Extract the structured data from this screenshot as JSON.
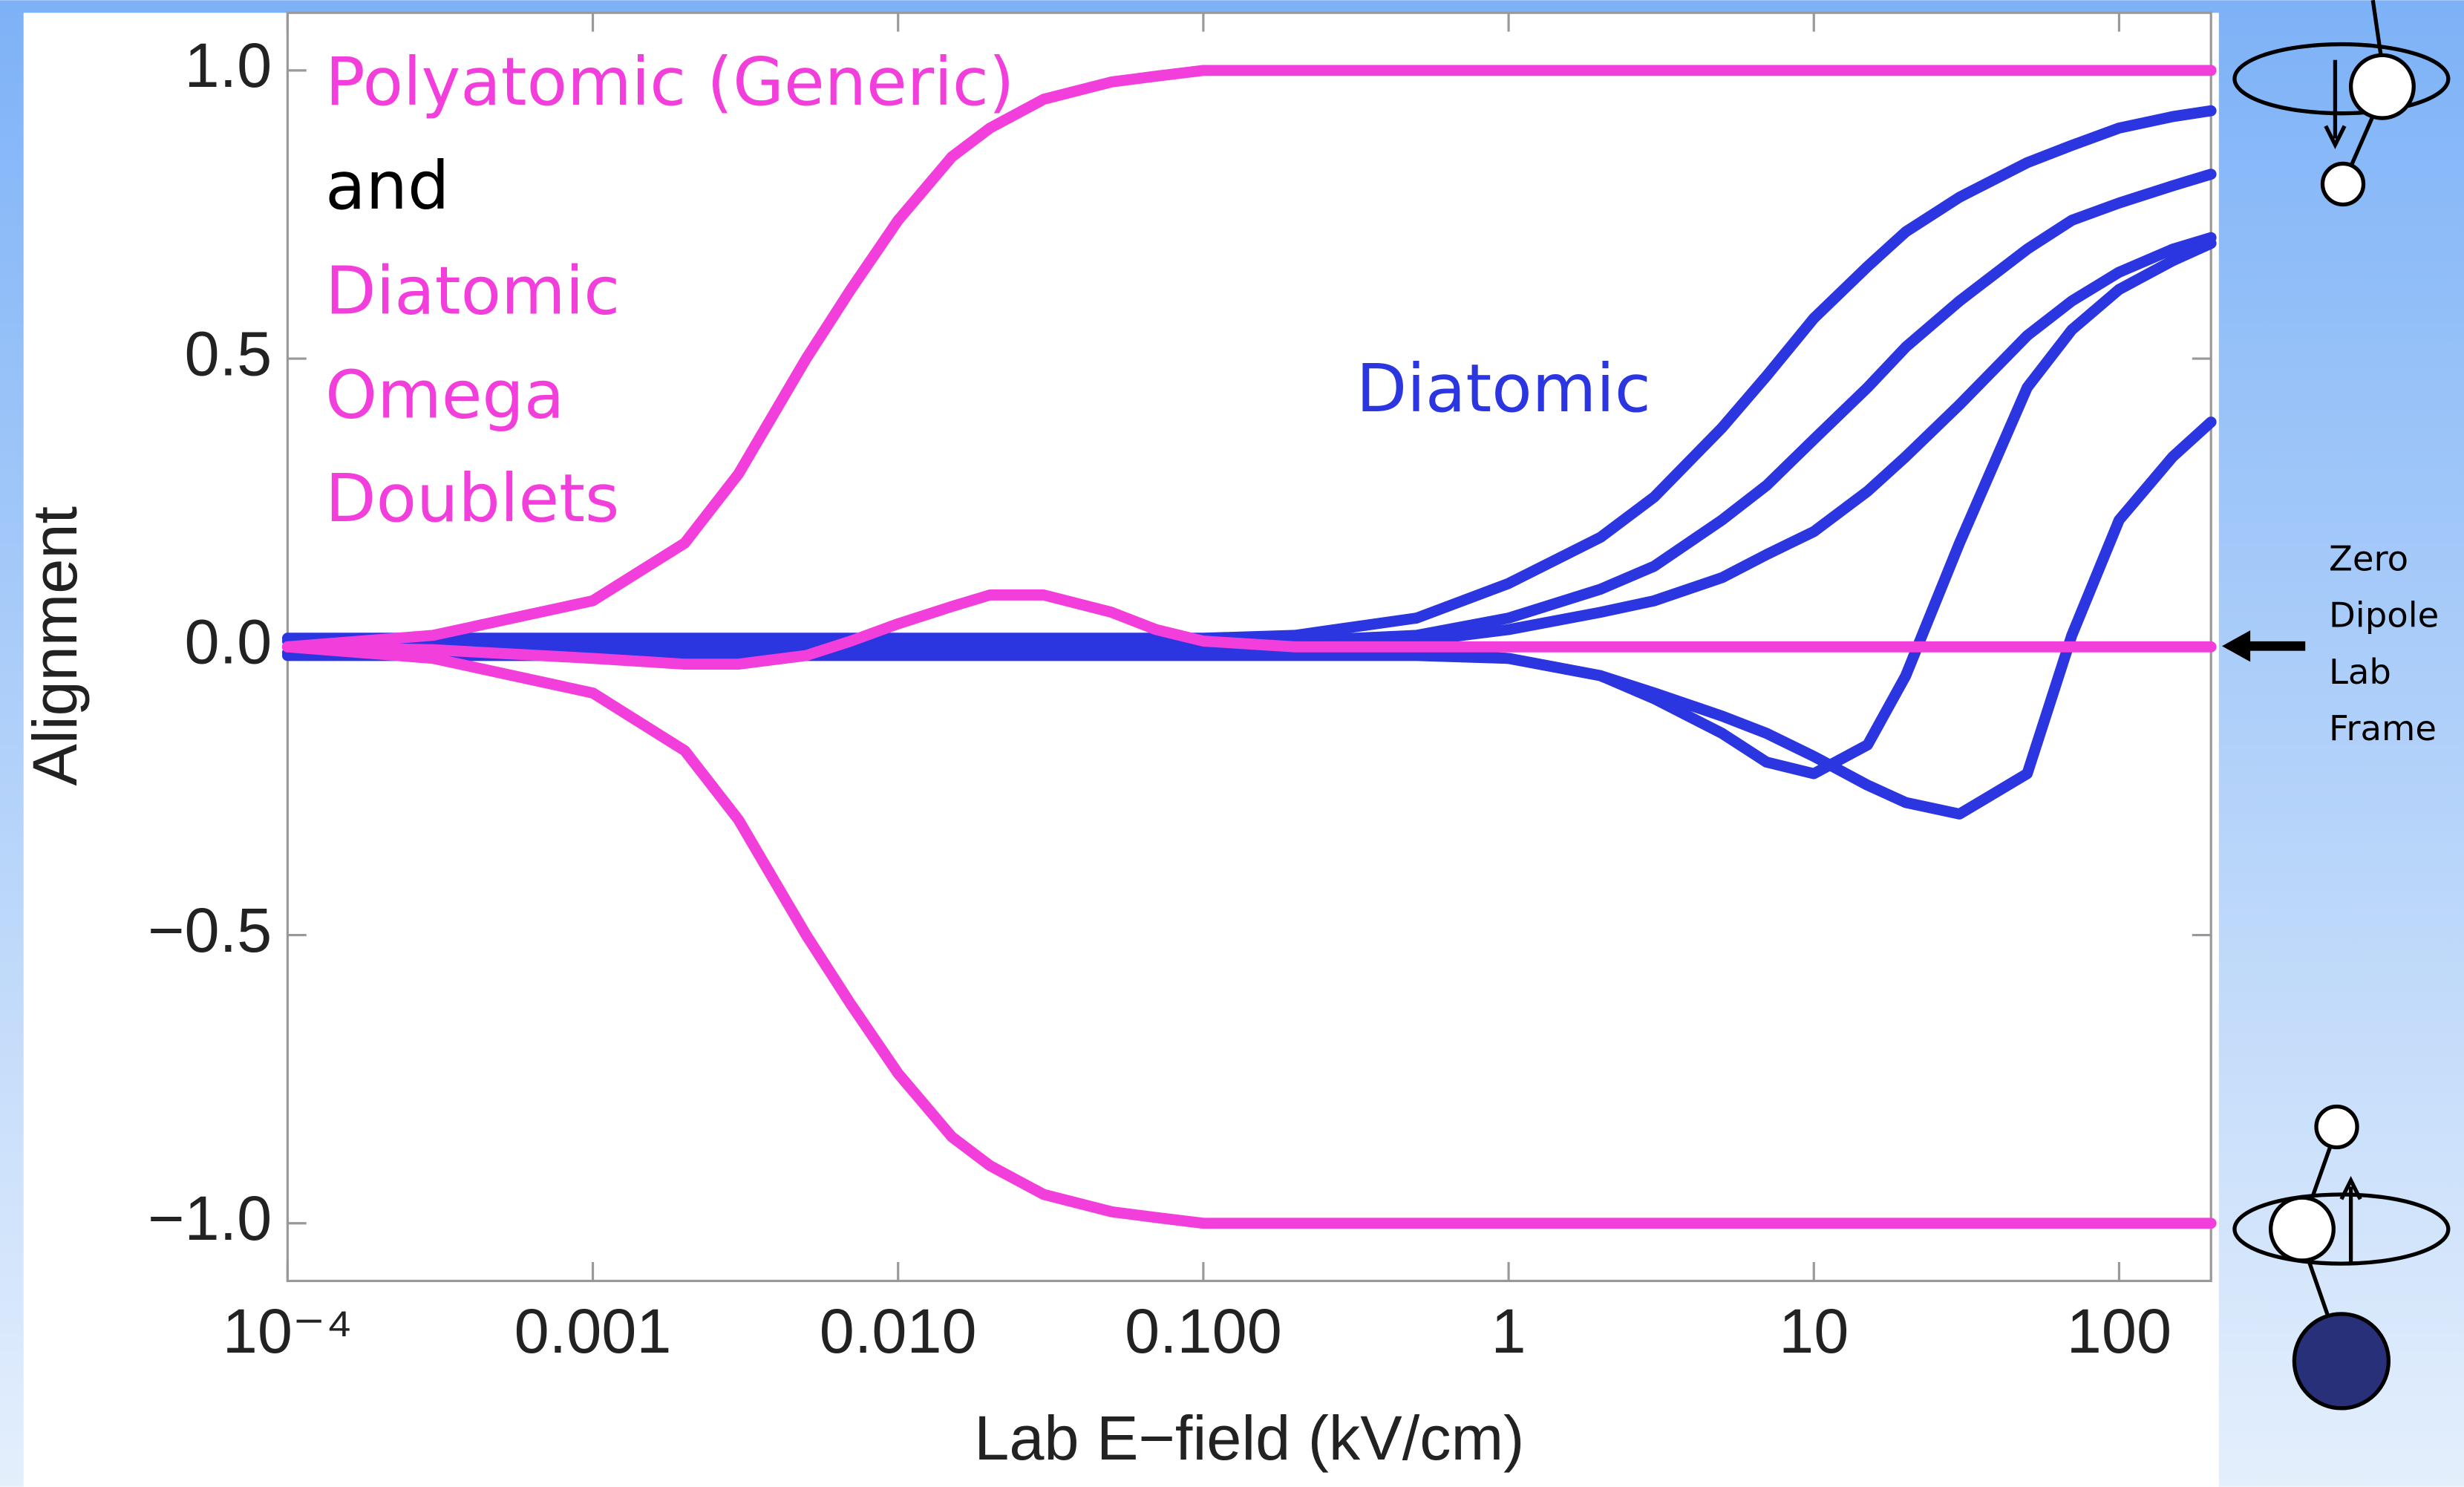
{
  "chart_data": {
    "type": "line",
    "x_label": "Lab E−field (kV/cm)",
    "y_label": "Alignment",
    "x_scale": "log",
    "xlim": [
      0.0001,
      200
    ],
    "ylim": [
      -1.1,
      1.1
    ],
    "xticks": [
      {
        "value": 0.0001,
        "label": "10⁻⁴"
      },
      {
        "value": 0.001,
        "label": "0.001"
      },
      {
        "value": 0.01,
        "label": "0.010"
      },
      {
        "value": 0.1,
        "label": "0.100"
      },
      1,
      10,
      100
    ],
    "yticks": [
      {
        "value": 1,
        "label": "1.0"
      },
      0.5,
      {
        "value": 0,
        "label": "0.0"
      },
      {
        "value": -0.5,
        "label": "−0.5"
      },
      {
        "value": -1,
        "label": "−1.0"
      }
    ],
    "x": [
      0.0001,
      0.0003,
      0.001,
      0.002,
      0.003,
      0.005,
      0.007,
      0.01,
      0.015,
      0.02,
      0.03,
      0.05,
      0.07,
      0.1,
      0.2,
      0.5,
      1,
      2,
      3,
      5,
      7,
      10,
      15,
      20,
      30,
      50,
      70,
      100,
      150,
      200
    ],
    "series": [
      {
        "color": "#2b35e0",
        "values": [
          0.015,
          0.015,
          0.015,
          0.015,
          0.015,
          0.015,
          0.015,
          0.015,
          0.015,
          0.015,
          0.015,
          0.015,
          0.015,
          0.015,
          0.02,
          0.05,
          0.11,
          0.19,
          0.26,
          0.38,
          0.47,
          0.57,
          0.66,
          0.72,
          0.78,
          0.84,
          0.87,
          0.9,
          0.92,
          0.93
        ]
      },
      {
        "color": "#2b35e0",
        "values": [
          0.01,
          0.01,
          0.01,
          0.01,
          0.01,
          0.01,
          0.01,
          0.01,
          0.01,
          0.01,
          0.01,
          0.01,
          0.01,
          0.01,
          0.01,
          0.02,
          0.05,
          0.1,
          0.14,
          0.22,
          0.28,
          0.36,
          0.45,
          0.52,
          0.6,
          0.69,
          0.74,
          0.77,
          0.8,
          0.82
        ]
      },
      {
        "color": "#2b35e0",
        "values": [
          0,
          0,
          0,
          0,
          0,
          0,
          0,
          0,
          0,
          0,
          0,
          0,
          0,
          0,
          0,
          0.01,
          0.03,
          0.06,
          0.08,
          0.12,
          0.16,
          0.2,
          0.27,
          0.33,
          0.42,
          0.54,
          0.6,
          0.65,
          0.69,
          0.71
        ]
      },
      {
        "color": "#2b35e0",
        "values": [
          -0.01,
          -0.01,
          -0.01,
          -0.01,
          -0.01,
          -0.01,
          -0.01,
          -0.01,
          -0.01,
          -0.01,
          -0.01,
          -0.01,
          -0.01,
          -0.01,
          -0.01,
          -0.01,
          -0.02,
          -0.05,
          -0.09,
          -0.15,
          -0.2,
          -0.22,
          -0.17,
          -0.05,
          0.18,
          0.45,
          0.55,
          0.62,
          0.67,
          0.7
        ]
      },
      {
        "color": "#2b35e0",
        "values": [
          -0.015,
          -0.015,
          -0.015,
          -0.015,
          -0.015,
          -0.015,
          -0.015,
          -0.015,
          -0.015,
          -0.015,
          -0.015,
          -0.015,
          -0.015,
          -0.015,
          -0.015,
          -0.015,
          -0.02,
          -0.05,
          -0.08,
          -0.12,
          -0.15,
          -0.19,
          -0.24,
          -0.27,
          -0.29,
          -0.22,
          0.02,
          0.22,
          0.33,
          0.39
        ]
      },
      {
        "color": "#f23fdc",
        "values": [
          0,
          0.02,
          0.08,
          0.18,
          0.3,
          0.5,
          0.62,
          0.74,
          0.85,
          0.9,
          0.95,
          0.98,
          0.99,
          1,
          1,
          1,
          1,
          1,
          1,
          1,
          1,
          1,
          1,
          1,
          1,
          1,
          1,
          1,
          1,
          1
        ]
      },
      {
        "color": "#f23fdc",
        "values": [
          0,
          -0.02,
          -0.08,
          -0.18,
          -0.3,
          -0.5,
          -0.62,
          -0.74,
          -0.85,
          -0.9,
          -0.95,
          -0.98,
          -0.99,
          -1,
          -1,
          -1,
          -1,
          -1,
          -1,
          -1,
          -1,
          -1,
          -1,
          -1,
          -1,
          -1,
          -1,
          -1,
          -1,
          -1
        ]
      },
      {
        "color": "#f23fdc",
        "values": [
          0,
          -0.005,
          -0.02,
          -0.03,
          -0.03,
          -0.015,
          0.01,
          0.04,
          0.07,
          0.09,
          0.09,
          0.06,
          0.03,
          0.01,
          0,
          0,
          0,
          0,
          0,
          0,
          0,
          0,
          0,
          0,
          0,
          0,
          0,
          0,
          0,
          0
        ]
      }
    ],
    "annotations": [
      {
        "text": "Polyatomic (Generic)",
        "color": "#f23fdc"
      },
      {
        "text": "and",
        "color": "#000000"
      },
      {
        "text": "Diatomic",
        "color": "#f23fdc"
      },
      {
        "text": "Omega",
        "color": "#f23fdc"
      },
      {
        "text": "Doublets",
        "color": "#f23fdc"
      },
      {
        "text": "Diatomic",
        "color": "#2b35e0"
      },
      {
        "text": "Zero",
        "color": "#000000"
      },
      {
        "text": "Dipole",
        "color": "#000000"
      },
      {
        "text": "Lab",
        "color": "#000000"
      },
      {
        "text": "Frame",
        "color": "#000000"
      }
    ]
  }
}
